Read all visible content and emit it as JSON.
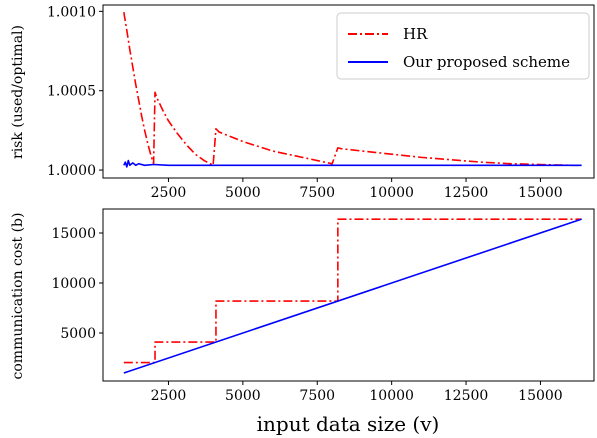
{
  "chart_data": [
    {
      "type": "line",
      "ylabel": "risk (used/optimal)",
      "xlabel": "",
      "xlim": [
        300,
        16800
      ],
      "ylim": [
        0.99995,
        1.00104
      ],
      "xticks": [
        2500,
        5000,
        7500,
        10000,
        12500,
        15000
      ],
      "xtick_labels": [
        "2500",
        "5000",
        "7500",
        "10000",
        "12500",
        "15000"
      ],
      "yticks": [
        1.0,
        1.0005,
        1.001
      ],
      "ytick_labels": [
        "1.0000",
        "1.0005",
        "1.0010"
      ],
      "legend_position": "top-right",
      "colors": {
        "hr": "#ff0000",
        "proposed": "#0000ff"
      },
      "series": [
        {
          "name": "HR",
          "style": "dash-dot",
          "x": [
            1000,
            1100,
            1200,
            1300,
            1400,
            1500,
            1600,
            1700,
            1800,
            1900,
            2000,
            2048,
            2100,
            2300,
            2500,
            2800,
            3100,
            3400,
            3700,
            4000,
            4096,
            4200,
            4600,
            5000,
            5500,
            6000,
            6500,
            7000,
            7500,
            8000,
            8192,
            8300,
            9000,
            10000,
            11000,
            12000,
            13000,
            14000,
            15000,
            16000,
            16384
          ],
          "y": [
            1.000995,
            1.00088,
            1.00076,
            1.00065,
            1.00054,
            1.00044,
            1.00034,
            1.00025,
            1.00017,
            1.0001,
            1.00004,
            1.00049,
            1.00046,
            1.00038,
            1.00031,
            1.00023,
            1.00016,
            1.0001,
            1.00006,
            1.00003,
            1.00026,
            1.00024,
            1.00021,
            1.00018,
            1.00015,
            1.00012,
            1.0001,
            1.00008,
            1.00006,
            1.00004,
            1.00014,
            1.000135,
            1.00012,
            1.0001,
            1.00008,
            1.000065,
            1.00005,
            1.00004,
            1.000035,
            1.00003,
            1.00003
          ]
        },
        {
          "name": "Our proposed scheme",
          "style": "solid",
          "x": [
            1000,
            1050,
            1100,
            1150,
            1200,
            1300,
            1400,
            1500,
            1700,
            2000,
            2500,
            3000,
            4000,
            5000,
            6000,
            8000,
            10000,
            12000,
            14000,
            16384
          ],
          "y": [
            1.00003,
            1.00005,
            1.00002,
            1.00006,
            1.00003,
            1.000045,
            1.00003,
            1.00004,
            1.00003,
            1.000035,
            1.00003,
            1.00003,
            1.00003,
            1.00003,
            1.00003,
            1.00003,
            1.00003,
            1.00003,
            1.00003,
            1.00003
          ]
        }
      ]
    },
    {
      "type": "line",
      "ylabel": "communication cost (b)",
      "xlabel": "input data size (v)",
      "xlim": [
        300,
        16800
      ],
      "ylim": [
        200,
        17400
      ],
      "xticks": [
        2500,
        5000,
        7500,
        10000,
        12500,
        15000
      ],
      "xtick_labels": [
        "2500",
        "5000",
        "7500",
        "10000",
        "12500",
        "15000"
      ],
      "yticks": [
        5000,
        10000,
        15000
      ],
      "ytick_labels": [
        "5000",
        "10000",
        "15000"
      ],
      "colors": {
        "hr": "#ff0000",
        "proposed": "#0000ff"
      },
      "series": [
        {
          "name": "HR",
          "style": "dash-dot",
          "x": [
            1000,
            2048,
            2048,
            4096,
            4096,
            8192,
            8192,
            16384
          ],
          "y": [
            2048,
            2048,
            4096,
            4096,
            8192,
            8192,
            16384,
            16384
          ]
        },
        {
          "name": "Our proposed scheme",
          "style": "solid",
          "x": [
            1000,
            16384
          ],
          "y": [
            1000,
            16384
          ]
        }
      ]
    }
  ]
}
